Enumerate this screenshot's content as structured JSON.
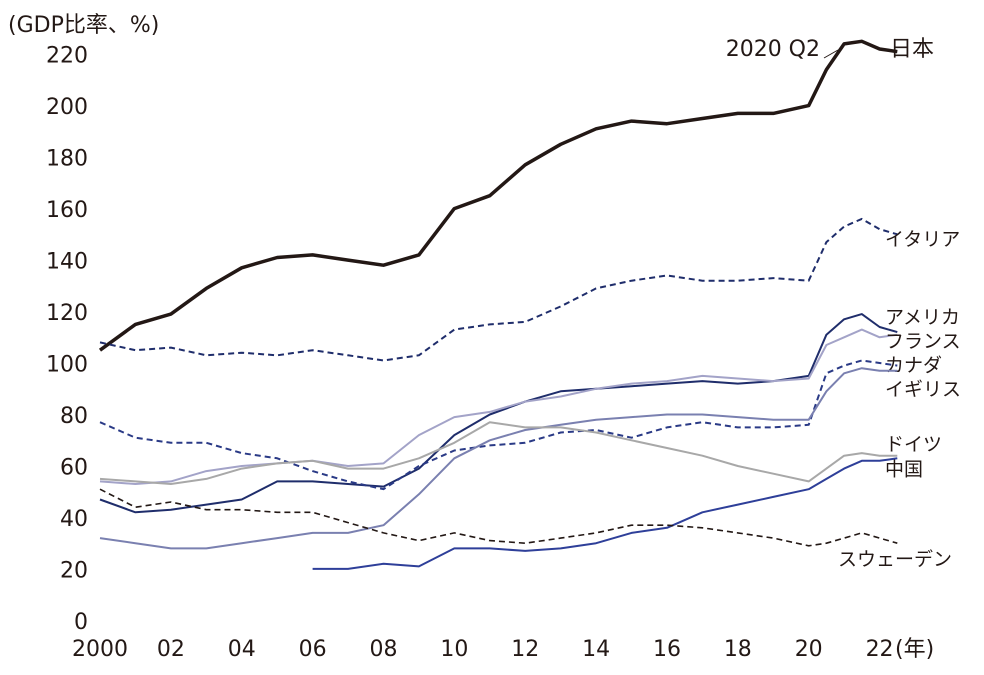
{
  "chart_data": {
    "type": "line",
    "ylabel": "(GDP比率、%)",
    "xunit": "(年)",
    "annotation": "2020 Q2",
    "x": [
      2000,
      2001,
      2002,
      2003,
      2004,
      2005,
      2006,
      2007,
      2008,
      2009,
      2010,
      2011,
      2012,
      2013,
      2014,
      2015,
      2016,
      2017,
      2018,
      2019,
      2020,
      2020.5,
      2021,
      2021.5,
      2022,
      2022.5
    ],
    "xlim": [
      2000,
      2023
    ],
    "xticks": [
      {
        "value": 2000,
        "label": "2000"
      },
      {
        "value": 2002,
        "label": "02"
      },
      {
        "value": 2004,
        "label": "04"
      },
      {
        "value": 2006,
        "label": "06"
      },
      {
        "value": 2008,
        "label": "08"
      },
      {
        "value": 2010,
        "label": "10"
      },
      {
        "value": 2012,
        "label": "12"
      },
      {
        "value": 2014,
        "label": "14"
      },
      {
        "value": 2016,
        "label": "16"
      },
      {
        "value": 2018,
        "label": "18"
      },
      {
        "value": 2020,
        "label": "20"
      },
      {
        "value": 2022,
        "label": "22"
      }
    ],
    "ylim": [
      0,
      230
    ],
    "yticks": [
      0,
      20,
      40,
      60,
      80,
      100,
      120,
      140,
      160,
      180,
      200,
      220
    ],
    "grid": false,
    "series": [
      {
        "name": "日本",
        "color": "#231815",
        "dashed": false,
        "linewidth": 3.5,
        "values": [
          106,
          116,
          120,
          130,
          138,
          142,
          143,
          141,
          139,
          143,
          161,
          166,
          178,
          186,
          192,
          195,
          194,
          196,
          198,
          198,
          201,
          215,
          225,
          226,
          223,
          222
        ]
      },
      {
        "name": "イタリア",
        "color": "#1f2d6b",
        "dashed": true,
        "linewidth": 2,
        "values": [
          109,
          106,
          107,
          104,
          105,
          104,
          106,
          104,
          102,
          104,
          114,
          116,
          117,
          123,
          130,
          133,
          135,
          133,
          133,
          134,
          133,
          148,
          154,
          157,
          153,
          151
        ]
      },
      {
        "name": "アメリカ",
        "color": "#1f2d6b",
        "dashed": false,
        "linewidth": 2,
        "values": [
          48,
          43,
          44,
          46,
          48,
          55,
          55,
          54,
          53,
          60,
          73,
          81,
          86,
          90,
          91,
          92,
          93,
          94,
          93,
          94,
          96,
          112,
          118,
          120,
          115,
          113
        ]
      },
      {
        "name": "フランス",
        "color": "#a3a3c8",
        "dashed": false,
        "linewidth": 2,
        "values": [
          55,
          54,
          55,
          59,
          61,
          62,
          63,
          61,
          62,
          73,
          80,
          82,
          86,
          88,
          91,
          93,
          94,
          96,
          95,
          94,
          95,
          108,
          111,
          114,
          111,
          112
        ]
      },
      {
        "name": "カナダ",
        "color": "#2a3a86",
        "dashed": true,
        "linewidth": 2,
        "values": [
          78,
          72,
          70,
          70,
          66,
          64,
          59,
          55,
          52,
          61,
          67,
          69,
          70,
          74,
          75,
          72,
          76,
          78,
          76,
          76,
          77,
          97,
          100,
          102,
          101,
          100
        ]
      },
      {
        "name": "イギリス",
        "color": "#7a80b0",
        "dashed": false,
        "linewidth": 2,
        "values": [
          33,
          31,
          29,
          29,
          31,
          33,
          35,
          35,
          38,
          50,
          64,
          71,
          75,
          77,
          79,
          80,
          81,
          81,
          80,
          79,
          79,
          90,
          97,
          99,
          98,
          98
        ]
      },
      {
        "name": "ドイツ",
        "color": "#a8a8a8",
        "dashed": false,
        "linewidth": 2,
        "values": [
          56,
          55,
          54,
          56,
          60,
          62,
          63,
          60,
          60,
          64,
          70,
          78,
          76,
          76,
          74,
          71,
          68,
          65,
          61,
          58,
          55,
          60,
          65,
          66,
          65,
          65
        ]
      },
      {
        "name": "中国",
        "color": "#2e3f99",
        "dashed": false,
        "linewidth": 2,
        "values": [
          null,
          null,
          null,
          null,
          null,
          null,
          21,
          21,
          23,
          22,
          29,
          29,
          28,
          29,
          31,
          35,
          37,
          43,
          46,
          49,
          52,
          56,
          60,
          63,
          63,
          64
        ]
      },
      {
        "name": "スウェーデン",
        "color": "#231815",
        "dashed": true,
        "linewidth": 1.6,
        "values": [
          52,
          45,
          47,
          44,
          44,
          43,
          43,
          39,
          35,
          32,
          35,
          32,
          31,
          33,
          35,
          38,
          38,
          37,
          35,
          33,
          30,
          31,
          33,
          35,
          33,
          31
        ]
      }
    ]
  }
}
